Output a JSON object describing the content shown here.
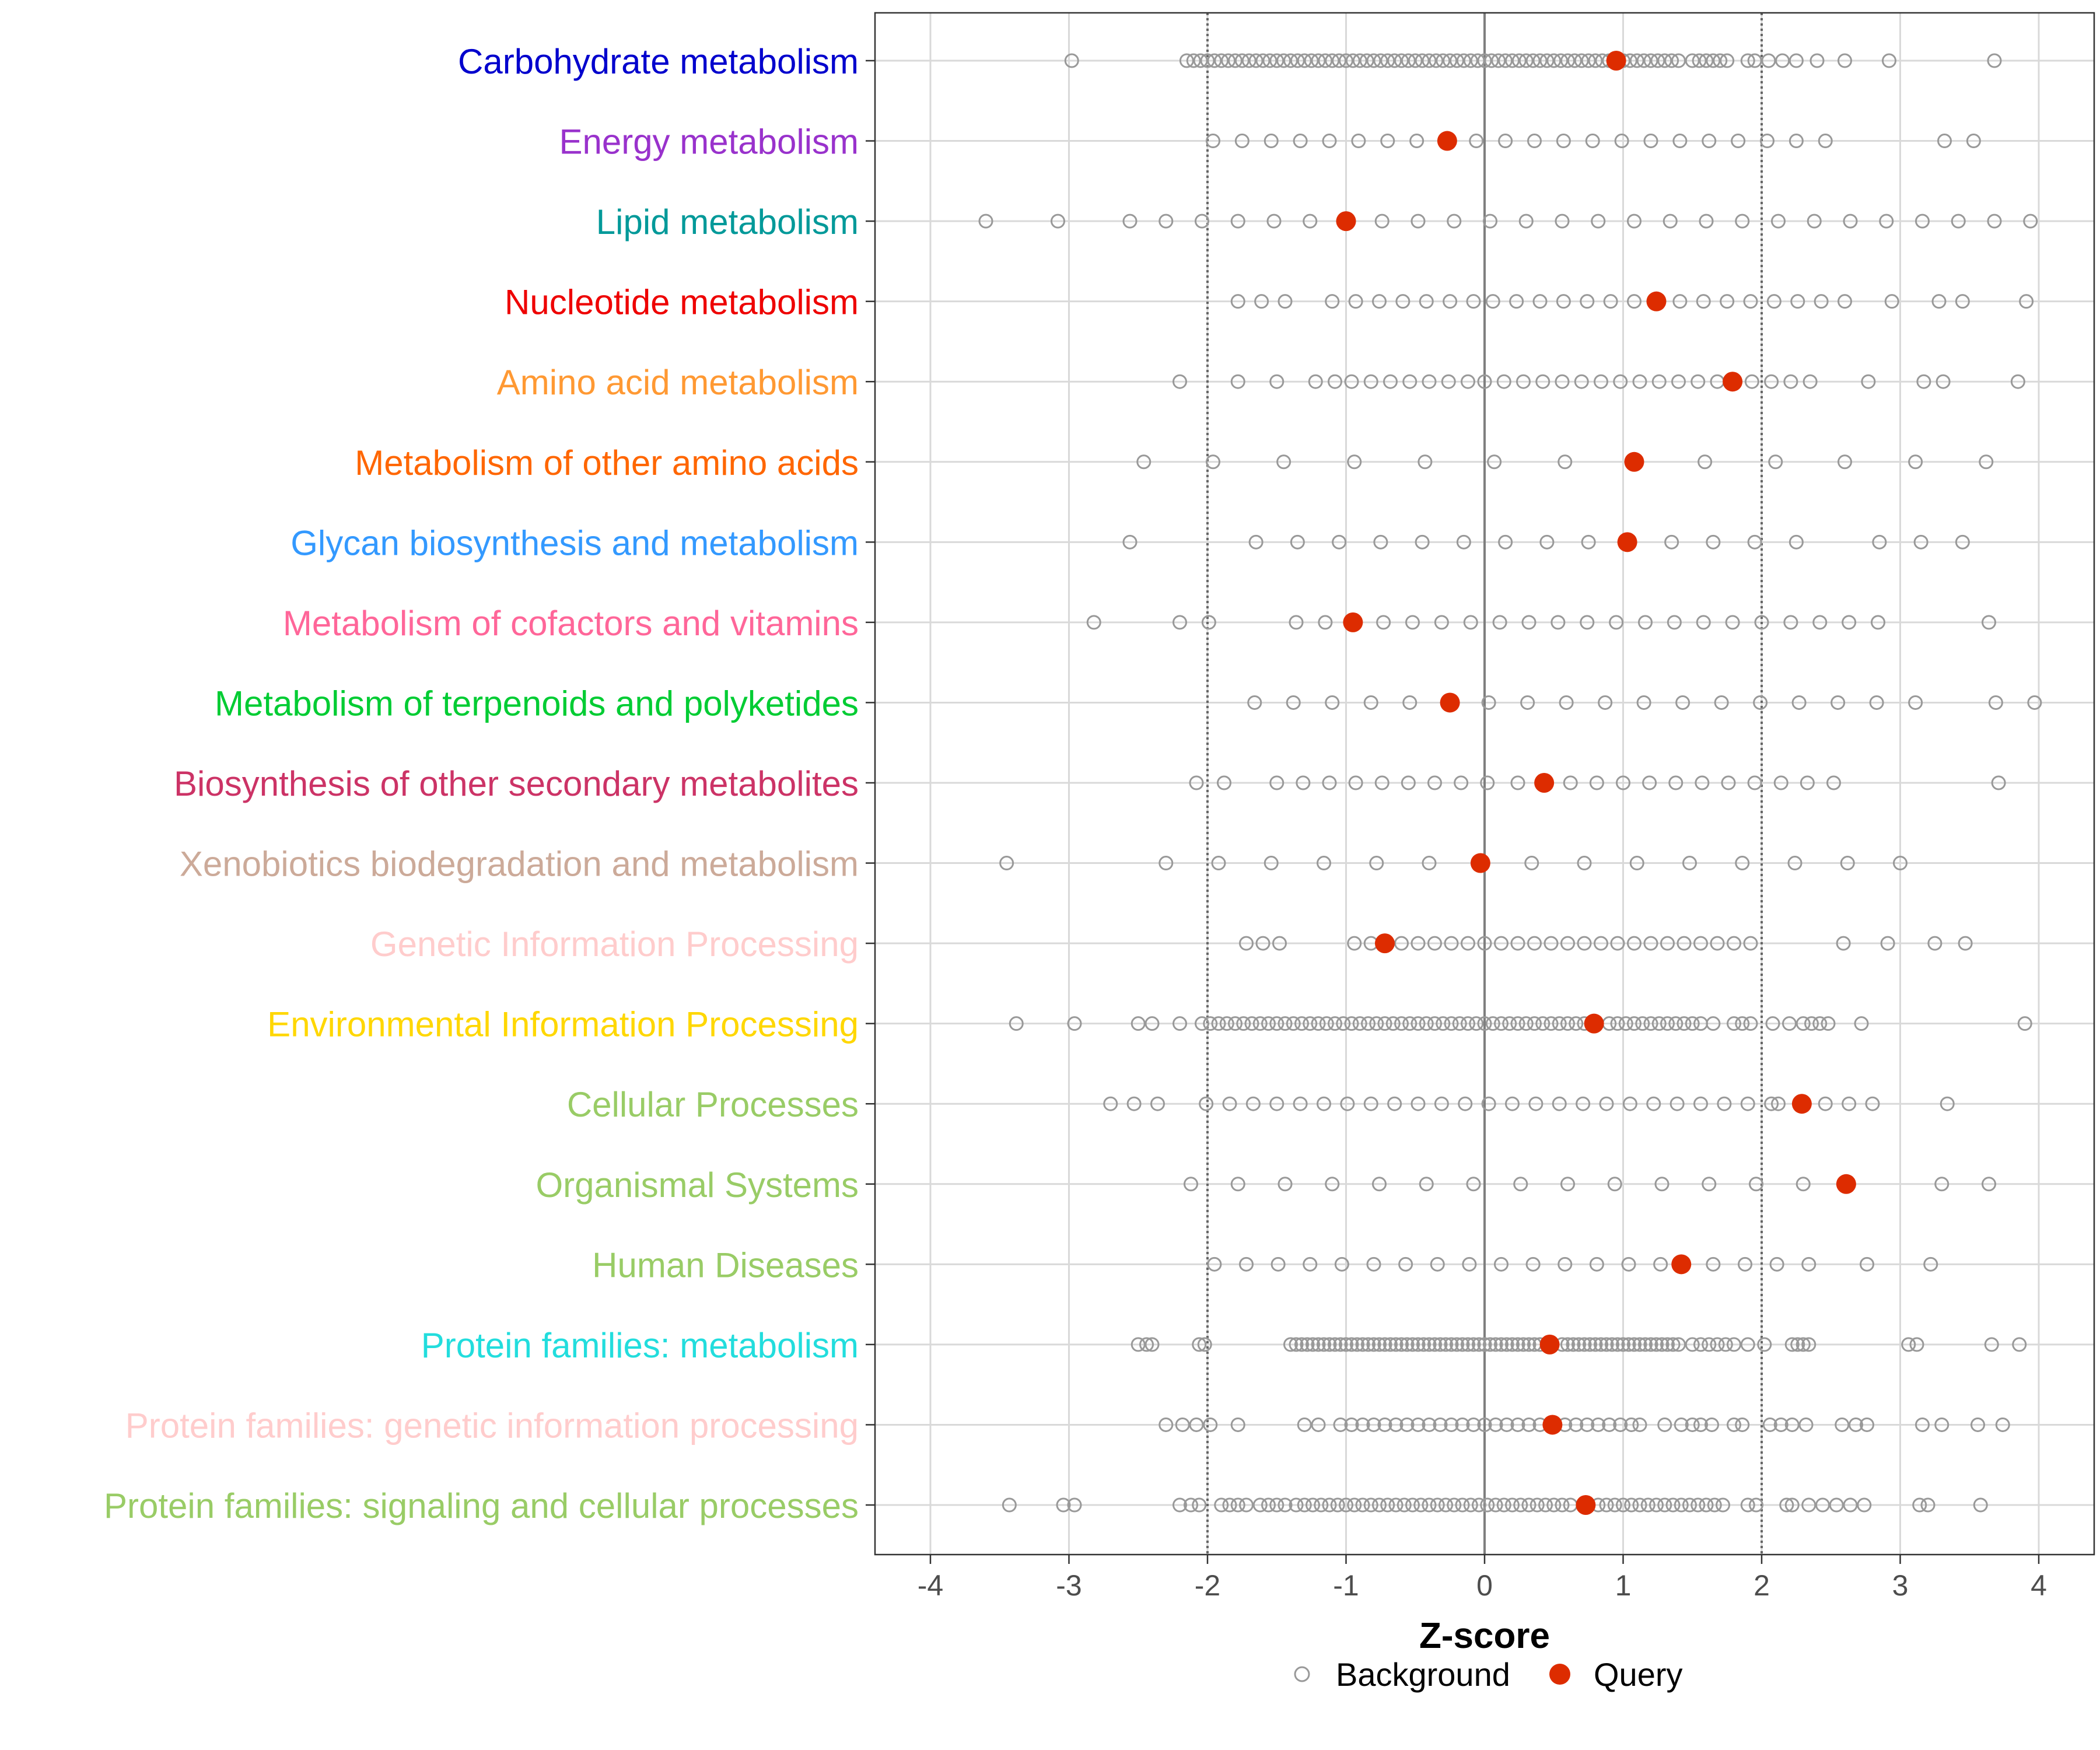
{
  "chart_data": {
    "type": "scatter",
    "title": "",
    "xlabel": "Z-score",
    "ylabel": "",
    "xlim": [
      -4.4,
      4.4
    ],
    "x_ticks": [
      -4,
      -3,
      -2,
      -1,
      0,
      1,
      2,
      3,
      4
    ],
    "x_tick_labels": [
      "-4",
      "-3",
      "-2",
      "-1",
      "0",
      "1",
      "2",
      "3",
      "4"
    ],
    "reference_lines": [
      {
        "x": -2,
        "style": "dotted"
      },
      {
        "x": 0,
        "style": "solid"
      },
      {
        "x": 2,
        "style": "dotted"
      }
    ],
    "grid": true,
    "legend": {
      "position": "bottom-center",
      "items": [
        {
          "label": "Background",
          "marker": "open-circle",
          "color": "#999999"
        },
        {
          "label": "Query",
          "marker": "filled-circle",
          "color": "#DD2C00"
        }
      ]
    },
    "categories": [
      {
        "label": "Carbohydrate metabolism",
        "color": "#0000CD",
        "query": 0.95,
        "background": [
          -2.98,
          -2.15,
          -2.1,
          -2.05,
          -2.0,
          -1.95,
          -1.9,
          -1.85,
          -1.8,
          -1.75,
          -1.7,
          -1.65,
          -1.6,
          -1.55,
          -1.5,
          -1.45,
          -1.4,
          -1.35,
          -1.3,
          -1.25,
          -1.2,
          -1.15,
          -1.1,
          -1.05,
          -1.0,
          -0.95,
          -0.9,
          -0.85,
          -0.8,
          -0.75,
          -0.7,
          -0.65,
          -0.6,
          -0.55,
          -0.5,
          -0.45,
          -0.4,
          -0.35,
          -0.3,
          -0.25,
          -0.2,
          -0.15,
          -0.1,
          -0.05,
          0.0,
          0.05,
          0.1,
          0.15,
          0.2,
          0.25,
          0.3,
          0.35,
          0.4,
          0.45,
          0.5,
          0.55,
          0.6,
          0.65,
          0.7,
          0.75,
          0.8,
          0.85,
          0.9,
          1.0,
          1.05,
          1.1,
          1.15,
          1.2,
          1.25,
          1.3,
          1.35,
          1.4,
          1.5,
          1.55,
          1.6,
          1.65,
          1.7,
          1.75,
          1.9,
          1.95,
          2.05,
          2.15,
          2.25,
          2.4,
          2.6,
          2.92,
          3.68
        ]
      },
      {
        "label": "Energy metabolism",
        "color": "#9932CC",
        "query": -0.27,
        "background": [
          -1.96,
          -1.75,
          -1.54,
          -1.33,
          -1.12,
          -0.91,
          -0.7,
          -0.49,
          -0.06,
          0.15,
          0.36,
          0.57,
          0.78,
          0.99,
          1.2,
          1.41,
          1.62,
          1.83,
          2.04,
          2.25,
          2.46,
          3.32,
          3.53
        ]
      },
      {
        "label": "Lipid metabolism",
        "color": "#009999",
        "query": -1.0,
        "background": [
          -3.6,
          -3.08,
          -2.56,
          -2.3,
          -2.04,
          -1.78,
          -1.52,
          -1.26,
          -0.74,
          -0.48,
          -0.22,
          0.04,
          0.3,
          0.56,
          0.82,
          1.08,
          1.34,
          1.6,
          1.86,
          2.12,
          2.38,
          2.64,
          2.9,
          3.16,
          3.42,
          3.68,
          3.94
        ]
      },
      {
        "label": "Nucleotide metabolism",
        "color": "#EE0000",
        "query": 1.24,
        "background": [
          -1.78,
          -1.61,
          -1.44,
          -1.1,
          -0.93,
          -0.76,
          -0.59,
          -0.42,
          -0.25,
          -0.08,
          0.06,
          0.23,
          0.4,
          0.57,
          0.74,
          0.91,
          1.08,
          1.41,
          1.58,
          1.75,
          1.92,
          2.09,
          2.26,
          2.43,
          2.6,
          2.94,
          3.28,
          3.45,
          3.91
        ]
      },
      {
        "label": "Amino acid metabolism",
        "color": "#FF9933",
        "query": 1.79,
        "background": [
          -2.2,
          -1.78,
          -1.5,
          -1.22,
          -1.08,
          -0.96,
          -0.82,
          -0.68,
          -0.54,
          -0.4,
          -0.26,
          -0.12,
          0.0,
          0.14,
          0.28,
          0.42,
          0.56,
          0.7,
          0.84,
          0.98,
          1.12,
          1.26,
          1.4,
          1.54,
          1.68,
          1.93,
          2.07,
          2.21,
          2.35,
          2.77,
          3.17,
          3.31,
          3.85
        ]
      },
      {
        "label": "Metabolism of other amino acids",
        "color": "#FF6600",
        "query": 1.08,
        "background": [
          -2.46,
          -1.96,
          -1.45,
          -0.94,
          -0.43,
          0.07,
          0.58,
          1.59,
          2.1,
          2.6,
          3.11,
          3.62
        ]
      },
      {
        "label": "Glycan biosynthesis and metabolism",
        "color": "#3399FF",
        "query": 1.03,
        "background": [
          -2.56,
          -1.65,
          -1.35,
          -1.05,
          -0.75,
          -0.45,
          -0.15,
          0.15,
          0.45,
          0.75,
          1.35,
          1.65,
          1.95,
          2.25,
          2.85,
          3.15,
          3.45
        ]
      },
      {
        "label": "Metabolism of cofactors and vitamins",
        "color": "#FF6699",
        "query": -0.95,
        "background": [
          -2.82,
          -2.2,
          -1.99,
          -1.36,
          -1.15,
          -0.73,
          -0.52,
          -0.31,
          -0.1,
          0.11,
          0.32,
          0.53,
          0.74,
          0.95,
          1.16,
          1.37,
          1.58,
          1.79,
          2.0,
          2.21,
          2.42,
          2.63,
          2.84,
          3.64
        ]
      },
      {
        "label": "Metabolism of terpenoids and polyketides",
        "color": "#00CC33",
        "query": -0.25,
        "background": [
          -1.66,
          -1.38,
          -1.1,
          -0.82,
          -0.54,
          0.03,
          0.31,
          0.59,
          0.87,
          1.15,
          1.43,
          1.71,
          1.99,
          2.27,
          2.55,
          2.83,
          3.11,
          3.69,
          3.97
        ]
      },
      {
        "label": "Biosynthesis of other secondary metabolites",
        "color": "#CC3366",
        "query": 0.43,
        "background": [
          -2.08,
          -1.88,
          -1.5,
          -1.31,
          -1.12,
          -0.93,
          -0.74,
          -0.55,
          -0.36,
          -0.17,
          0.02,
          0.24,
          0.62,
          0.81,
          1.0,
          1.19,
          1.38,
          1.57,
          1.76,
          1.95,
          2.14,
          2.33,
          2.52,
          3.71
        ]
      },
      {
        "label": "Xenobiotics biodegradation and metabolism",
        "color": "#CCAA99",
        "query": -0.03,
        "background": [
          -3.45,
          -2.3,
          -1.92,
          -1.54,
          -1.16,
          -0.78,
          -0.4,
          0.34,
          0.72,
          1.1,
          1.48,
          1.86,
          2.24,
          2.62,
          3.0
        ]
      },
      {
        "label": "Genetic Information Processing",
        "color": "#FFCCCC",
        "query": -0.72,
        "background": [
          -1.72,
          -1.6,
          -1.48,
          -0.94,
          -0.82,
          -0.6,
          -0.48,
          -0.36,
          -0.24,
          -0.12,
          0.0,
          0.12,
          0.24,
          0.36,
          0.48,
          0.6,
          0.72,
          0.84,
          0.96,
          1.08,
          1.2,
          1.32,
          1.44,
          1.56,
          1.68,
          1.8,
          1.92,
          2.59,
          2.91,
          3.25,
          3.47
        ]
      },
      {
        "label": "Environmental Information Processing",
        "color": "#FFD700",
        "query": 0.79,
        "background": [
          -3.38,
          -2.96,
          -2.5,
          -2.4,
          -2.2,
          -2.04,
          -1.98,
          -1.92,
          -1.86,
          -1.8,
          -1.74,
          -1.68,
          -1.62,
          -1.56,
          -1.5,
          -1.44,
          -1.38,
          -1.32,
          -1.26,
          -1.2,
          -1.14,
          -1.08,
          -1.02,
          -0.96,
          -0.9,
          -0.84,
          -0.78,
          -0.72,
          -0.66,
          -0.6,
          -0.54,
          -0.48,
          -0.42,
          -0.36,
          -0.3,
          -0.24,
          -0.18,
          -0.12,
          -0.06,
          0.0,
          0.06,
          0.12,
          0.18,
          0.24,
          0.3,
          0.36,
          0.42,
          0.48,
          0.54,
          0.6,
          0.66,
          0.72,
          0.9,
          0.96,
          1.02,
          1.08,
          1.14,
          1.2,
          1.26,
          1.32,
          1.38,
          1.44,
          1.5,
          1.56,
          1.65,
          1.8,
          1.86,
          1.92,
          2.08,
          2.2,
          2.3,
          2.36,
          2.42,
          2.48,
          2.72,
          3.9
        ]
      },
      {
        "label": "Cellular Processes",
        "color": "#99CC66",
        "query": 2.29,
        "background": [
          -2.7,
          -2.53,
          -2.36,
          -2.01,
          -1.84,
          -1.67,
          -1.5,
          -1.33,
          -1.16,
          -0.99,
          -0.82,
          -0.65,
          -0.48,
          -0.31,
          -0.14,
          0.03,
          0.2,
          0.37,
          0.54,
          0.71,
          0.88,
          1.05,
          1.22,
          1.39,
          1.56,
          1.73,
          1.9,
          2.07,
          2.12,
          2.46,
          2.63,
          2.8,
          3.34
        ]
      },
      {
        "label": "Organismal Systems",
        "color": "#99CC66",
        "query": 2.61,
        "background": [
          -2.12,
          -1.78,
          -1.44,
          -1.1,
          -0.76,
          -0.42,
          -0.08,
          0.26,
          0.6,
          0.94,
          1.28,
          1.62,
          1.96,
          2.3,
          3.3,
          3.64
        ]
      },
      {
        "label": "Human Diseases",
        "color": "#99CC66",
        "query": 1.42,
        "background": [
          -1.95,
          -1.72,
          -1.49,
          -1.26,
          -1.03,
          -0.8,
          -0.57,
          -0.34,
          -0.11,
          0.12,
          0.35,
          0.58,
          0.81,
          1.04,
          1.27,
          1.65,
          1.88,
          2.11,
          2.34,
          2.76,
          3.22
        ]
      },
      {
        "label": "Protein families: metabolism",
        "color": "#22DDDD",
        "query": 0.47,
        "background": [
          -2.5,
          -2.44,
          -2.4,
          -2.06,
          -2.02,
          -1.4,
          -1.36,
          -1.32,
          -1.28,
          -1.24,
          -1.2,
          -1.16,
          -1.12,
          -1.08,
          -1.04,
          -1.0,
          -0.96,
          -0.92,
          -0.88,
          -0.84,
          -0.8,
          -0.76,
          -0.72,
          -0.68,
          -0.64,
          -0.6,
          -0.56,
          -0.52,
          -0.48,
          -0.44,
          -0.4,
          -0.36,
          -0.32,
          -0.28,
          -0.24,
          -0.2,
          -0.16,
          -0.12,
          -0.08,
          -0.04,
          0.0,
          0.04,
          0.08,
          0.12,
          0.16,
          0.2,
          0.24,
          0.28,
          0.32,
          0.36,
          0.4,
          0.56,
          0.6,
          0.64,
          0.68,
          0.72,
          0.76,
          0.8,
          0.84,
          0.88,
          0.92,
          0.96,
          1.0,
          1.04,
          1.08,
          1.12,
          1.16,
          1.2,
          1.24,
          1.28,
          1.32,
          1.36,
          1.4,
          1.5,
          1.56,
          1.62,
          1.68,
          1.74,
          1.8,
          1.9,
          2.02,
          2.22,
          2.26,
          2.3,
          2.34,
          3.06,
          3.12,
          3.66,
          3.86
        ]
      },
      {
        "label": "Protein families: genetic information processing",
        "color": "#FFCCCC",
        "query": 0.49,
        "background": [
          -2.3,
          -2.18,
          -2.08,
          -1.98,
          -1.78,
          -1.3,
          -1.2,
          -1.04,
          -0.96,
          -0.88,
          -0.8,
          -0.72,
          -0.64,
          -0.56,
          -0.48,
          -0.4,
          -0.32,
          -0.24,
          -0.16,
          -0.08,
          0.0,
          0.08,
          0.16,
          0.24,
          0.32,
          0.4,
          0.58,
          0.66,
          0.74,
          0.82,
          0.9,
          0.98,
          1.06,
          1.12,
          1.3,
          1.42,
          1.5,
          1.56,
          1.64,
          1.8,
          1.86,
          2.06,
          2.14,
          2.22,
          2.32,
          2.58,
          2.68,
          2.76,
          3.16,
          3.3,
          3.56,
          3.74
        ]
      },
      {
        "label": "Protein families: signaling and cellular processes",
        "color": "#99CC66",
        "query": 0.73,
        "background": [
          -3.43,
          -3.04,
          -2.96,
          -2.2,
          -2.12,
          -2.06,
          -1.9,
          -1.84,
          -1.78,
          -1.72,
          -1.62,
          -1.56,
          -1.5,
          -1.44,
          -1.36,
          -1.3,
          -1.24,
          -1.18,
          -1.12,
          -1.06,
          -1.0,
          -0.94,
          -0.88,
          -0.82,
          -0.76,
          -0.7,
          -0.64,
          -0.58,
          -0.52,
          -0.46,
          -0.4,
          -0.34,
          -0.28,
          -0.22,
          -0.16,
          -0.1,
          -0.04,
          0.02,
          0.08,
          0.14,
          0.2,
          0.26,
          0.32,
          0.38,
          0.44,
          0.5,
          0.56,
          0.62,
          0.82,
          0.88,
          0.94,
          1.0,
          1.06,
          1.12,
          1.18,
          1.24,
          1.3,
          1.36,
          1.42,
          1.48,
          1.54,
          1.6,
          1.66,
          1.72,
          1.9,
          1.96,
          2.18,
          2.22,
          2.34,
          2.44,
          2.54,
          2.64,
          2.74,
          3.14,
          3.2,
          3.58
        ]
      }
    ]
  }
}
